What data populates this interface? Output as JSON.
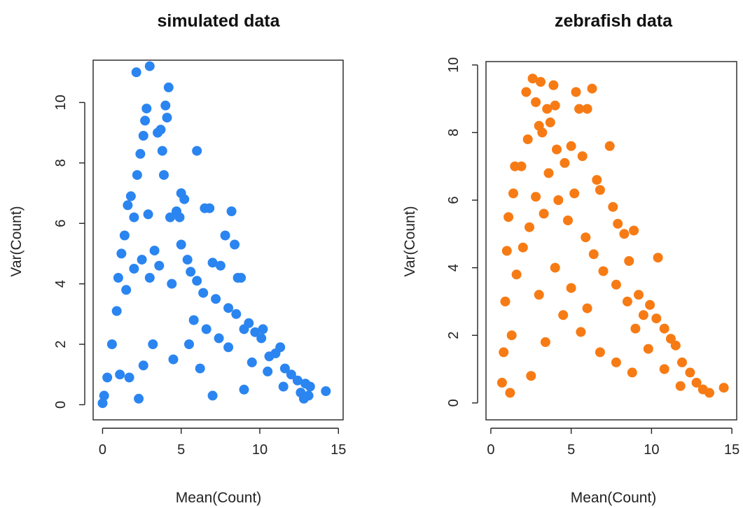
{
  "chart_data": [
    {
      "type": "scatter",
      "title": "simulated data",
      "xlabel": "Mean(Count)",
      "ylabel": "Var(Count)",
      "xlim": [
        -0.6,
        15.3
      ],
      "ylim": [
        -0.5,
        11.4
      ],
      "xticks": [
        0,
        5,
        10,
        15
      ],
      "xtick_labels": [
        "0",
        "5",
        "10",
        "15"
      ],
      "yticks": [
        0,
        2,
        4,
        6,
        8,
        10
      ],
      "ytick_labels": [
        "0",
        "2",
        "4",
        "6",
        "8",
        "10"
      ],
      "grid": false,
      "color": "#2b85f0",
      "points": [
        [
          0.0,
          0.05
        ],
        [
          0.1,
          0.3
        ],
        [
          0.3,
          0.9
        ],
        [
          0.6,
          2.0
        ],
        [
          0.9,
          3.1
        ],
        [
          1.0,
          4.2
        ],
        [
          1.2,
          5.0
        ],
        [
          1.4,
          5.6
        ],
        [
          1.6,
          6.6
        ],
        [
          1.8,
          6.9
        ],
        [
          2.0,
          6.2
        ],
        [
          2.2,
          7.6
        ],
        [
          2.4,
          8.3
        ],
        [
          2.6,
          8.9
        ],
        [
          2.7,
          9.4
        ],
        [
          2.8,
          9.8
        ],
        [
          3.0,
          11.2
        ],
        [
          2.15,
          11.0
        ],
        [
          3.5,
          9.0
        ],
        [
          3.7,
          9.1
        ],
        [
          3.8,
          8.4
        ],
        [
          4.0,
          9.9
        ],
        [
          4.2,
          10.5
        ],
        [
          4.1,
          9.5
        ],
        [
          3.9,
          7.6
        ],
        [
          4.3,
          6.2
        ],
        [
          4.7,
          6.4
        ],
        [
          4.9,
          6.2
        ],
        [
          5.0,
          7.0
        ],
        [
          5.2,
          6.8
        ],
        [
          5.0,
          5.3
        ],
        [
          5.4,
          4.8
        ],
        [
          5.6,
          4.4
        ],
        [
          6.0,
          4.1
        ],
        [
          6.0,
          8.4
        ],
        [
          6.4,
          3.7
        ],
        [
          6.5,
          6.5
        ],
        [
          6.8,
          6.5
        ],
        [
          7.2,
          3.5
        ],
        [
          7.0,
          4.7
        ],
        [
          7.5,
          4.6
        ],
        [
          7.8,
          5.6
        ],
        [
          8.0,
          3.2
        ],
        [
          8.2,
          6.4
        ],
        [
          8.4,
          5.3
        ],
        [
          8.6,
          4.2
        ],
        [
          8.5,
          3.0
        ],
        [
          8.8,
          4.2
        ],
        [
          9.0,
          2.5
        ],
        [
          9.3,
          2.7
        ],
        [
          9.7,
          2.4
        ],
        [
          10.1,
          2.2
        ],
        [
          10.2,
          2.5
        ],
        [
          10.6,
          1.6
        ],
        [
          11.0,
          1.7
        ],
        [
          11.3,
          1.9
        ],
        [
          11.6,
          1.2
        ],
        [
          12.0,
          1.0
        ],
        [
          12.4,
          0.8
        ],
        [
          12.6,
          0.4
        ],
        [
          12.9,
          0.7
        ],
        [
          13.1,
          0.3
        ],
        [
          13.2,
          0.6
        ],
        [
          14.2,
          0.45
        ],
        [
          12.8,
          0.2
        ],
        [
          1.5,
          3.8
        ],
        [
          2.0,
          4.5
        ],
        [
          2.5,
          4.8
        ],
        [
          3.0,
          4.2
        ],
        [
          3.3,
          5.1
        ],
        [
          2.9,
          6.3
        ],
        [
          3.6,
          4.6
        ],
        [
          4.4,
          4.0
        ],
        [
          5.8,
          2.8
        ],
        [
          6.6,
          2.5
        ],
        [
          7.4,
          2.2
        ],
        [
          8.0,
          1.9
        ],
        [
          9.5,
          1.4
        ],
        [
          10.5,
          1.1
        ],
        [
          11.5,
          0.6
        ],
        [
          1.1,
          1.0
        ],
        [
          1.7,
          0.9
        ],
        [
          2.6,
          1.3
        ],
        [
          4.5,
          1.5
        ],
        [
          6.2,
          1.2
        ],
        [
          3.2,
          2.0
        ],
        [
          5.5,
          2.0
        ],
        [
          9.0,
          0.5
        ],
        [
          7.0,
          0.3
        ],
        [
          2.3,
          0.2
        ]
      ]
    },
    {
      "type": "scatter",
      "title": "zebrafish data",
      "xlabel": "Mean(Count)",
      "ylabel": "Var(Count)",
      "xlim": [
        -0.3,
        15.3
      ],
      "ylim": [
        -0.5,
        10.1
      ],
      "xticks": [
        0,
        5,
        10,
        15
      ],
      "xtick_labels": [
        "0",
        "5",
        "10",
        "15"
      ],
      "yticks": [
        0,
        2,
        4,
        6,
        8,
        10
      ],
      "ytick_labels": [
        "0",
        "2",
        "4",
        "6",
        "8",
        "10"
      ],
      "grid": false,
      "color": "#f77b14",
      "points": [
        [
          0.7,
          0.6
        ],
        [
          0.8,
          1.5
        ],
        [
          0.9,
          3.0
        ],
        [
          1.0,
          4.5
        ],
        [
          1.1,
          5.5
        ],
        [
          1.4,
          6.2
        ],
        [
          1.5,
          7.0
        ],
        [
          1.9,
          7.0
        ],
        [
          2.2,
          9.2
        ],
        [
          2.3,
          7.8
        ],
        [
          2.6,
          9.6
        ],
        [
          2.8,
          8.9
        ],
        [
          3.0,
          8.2
        ],
        [
          3.1,
          9.5
        ],
        [
          3.2,
          8.0
        ],
        [
          3.5,
          8.7
        ],
        [
          3.7,
          8.3
        ],
        [
          3.9,
          9.4
        ],
        [
          4.0,
          8.8
        ],
        [
          4.1,
          7.5
        ],
        [
          4.6,
          7.1
        ],
        [
          5.0,
          7.6
        ],
        [
          5.3,
          9.2
        ],
        [
          5.5,
          8.7
        ],
        [
          5.7,
          7.3
        ],
        [
          6.0,
          8.7
        ],
        [
          6.3,
          9.3
        ],
        [
          6.6,
          6.6
        ],
        [
          6.8,
          6.3
        ],
        [
          7.4,
          7.6
        ],
        [
          7.6,
          5.8
        ],
        [
          7.9,
          5.3
        ],
        [
          8.3,
          5.0
        ],
        [
          8.6,
          4.2
        ],
        [
          8.9,
          5.1
        ],
        [
          9.2,
          3.2
        ],
        [
          9.5,
          2.6
        ],
        [
          9.9,
          2.9
        ],
        [
          10.4,
          4.3
        ],
        [
          10.3,
          2.5
        ],
        [
          10.8,
          2.2
        ],
        [
          11.2,
          1.9
        ],
        [
          11.5,
          1.7
        ],
        [
          11.9,
          1.2
        ],
        [
          12.4,
          0.9
        ],
        [
          12.8,
          0.6
        ],
        [
          13.2,
          0.4
        ],
        [
          13.6,
          0.3
        ],
        [
          14.5,
          0.45
        ],
        [
          1.3,
          2.0
        ],
        [
          1.6,
          3.8
        ],
        [
          2.0,
          4.6
        ],
        [
          2.4,
          5.2
        ],
        [
          2.8,
          6.1
        ],
        [
          3.3,
          5.6
        ],
        [
          3.6,
          6.8
        ],
        [
          4.2,
          6.0
        ],
        [
          4.8,
          5.4
        ],
        [
          5.2,
          6.2
        ],
        [
          5.9,
          4.9
        ],
        [
          6.4,
          4.4
        ],
        [
          7.0,
          3.9
        ],
        [
          7.8,
          3.5
        ],
        [
          8.5,
          3.0
        ],
        [
          9.0,
          2.2
        ],
        [
          9.8,
          1.6
        ],
        [
          10.8,
          1.0
        ],
        [
          11.8,
          0.5
        ],
        [
          1.2,
          0.3
        ],
        [
          2.5,
          0.8
        ],
        [
          3.4,
          1.8
        ],
        [
          4.5,
          2.6
        ],
        [
          5.6,
          2.1
        ],
        [
          6.8,
          1.5
        ],
        [
          7.8,
          1.2
        ],
        [
          8.8,
          0.9
        ],
        [
          3.0,
          3.2
        ],
        [
          4.0,
          4.0
        ],
        [
          5.0,
          3.4
        ],
        [
          6.0,
          2.8
        ]
      ]
    }
  ]
}
